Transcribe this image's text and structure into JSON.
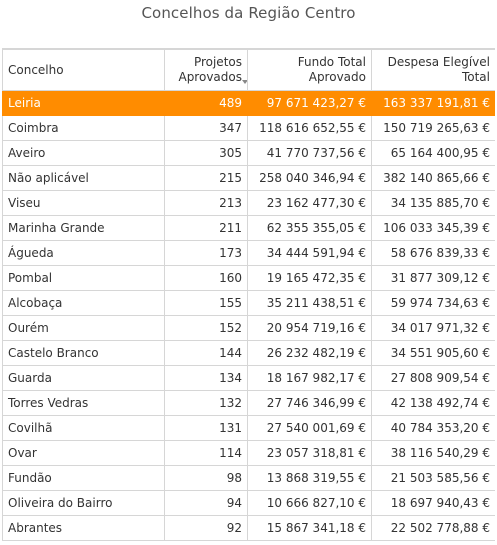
{
  "title": "Concelhos da Região Centro",
  "table": {
    "headers": {
      "concelho": "Concelho",
      "projetos_line1": "Projetos",
      "projetos_line2": "Aprovados",
      "fundo_line1": "Fundo Total",
      "fundo_line2": "Aprovado",
      "despesa_line1": "Despesa Elegível",
      "despesa_line2": "Total"
    },
    "sort_icon": "sort-descending-icon",
    "highlight_color": "#ff8c00",
    "rows": [
      {
        "concelho": "Leiria",
        "projetos": "489",
        "fundo": "97 671 423,27 €",
        "despesa": "163 337 191,81 €",
        "highlight": true
      },
      {
        "concelho": "Coimbra",
        "projetos": "347",
        "fundo": "118 616 652,55 €",
        "despesa": "150 719 265,63 €"
      },
      {
        "concelho": "Aveiro",
        "projetos": "305",
        "fundo": "41 770 737,56 €",
        "despesa": "65 164 400,95 €"
      },
      {
        "concelho": "Não aplicável",
        "projetos": "215",
        "fundo": "258 040 346,94 €",
        "despesa": "382 140 865,66 €"
      },
      {
        "concelho": "Viseu",
        "projetos": "213",
        "fundo": "23 162 477,30 €",
        "despesa": "34 135 885,70 €"
      },
      {
        "concelho": "Marinha Grande",
        "projetos": "211",
        "fundo": "62 355 355,05 €",
        "despesa": "106 033 345,39 €"
      },
      {
        "concelho": "Águeda",
        "projetos": "173",
        "fundo": "34 444 591,94 €",
        "despesa": "58 676 839,33 €"
      },
      {
        "concelho": "Pombal",
        "projetos": "160",
        "fundo": "19 165 472,35 €",
        "despesa": "31 877 309,12 €"
      },
      {
        "concelho": "Alcobaça",
        "projetos": "155",
        "fundo": "35 211 438,51 €",
        "despesa": "59 974 734,63 €"
      },
      {
        "concelho": "Ourém",
        "projetos": "152",
        "fundo": "20 954 719,16 €",
        "despesa": "34 017 971,32 €"
      },
      {
        "concelho": "Castelo Branco",
        "projetos": "144",
        "fundo": "26 232 482,19 €",
        "despesa": "34 551 905,60 €"
      },
      {
        "concelho": "Guarda",
        "projetos": "134",
        "fundo": "18 167 982,17 €",
        "despesa": "27 808 909,54 €"
      },
      {
        "concelho": "Torres Vedras",
        "projetos": "132",
        "fundo": "27 746 346,99 €",
        "despesa": "42 138 492,74 €"
      },
      {
        "concelho": "Covilhã",
        "projetos": "131",
        "fundo": "27 540 001,69 €",
        "despesa": "40 784 353,20 €"
      },
      {
        "concelho": "Ovar",
        "projetos": "114",
        "fundo": "23 057 318,81 €",
        "despesa": "38 116 540,29 €"
      },
      {
        "concelho": "Fundão",
        "projetos": "98",
        "fundo": "13 868 319,55 €",
        "despesa": "21 503 585,56 €"
      },
      {
        "concelho": "Oliveira do Bairro",
        "projetos": "94",
        "fundo": "10 666 827,10 €",
        "despesa": "18 697 940,43 €"
      },
      {
        "concelho": "Abrantes",
        "projetos": "92",
        "fundo": "15 867 341,18 €",
        "despesa": "22 502 778,88 €"
      }
    ]
  }
}
